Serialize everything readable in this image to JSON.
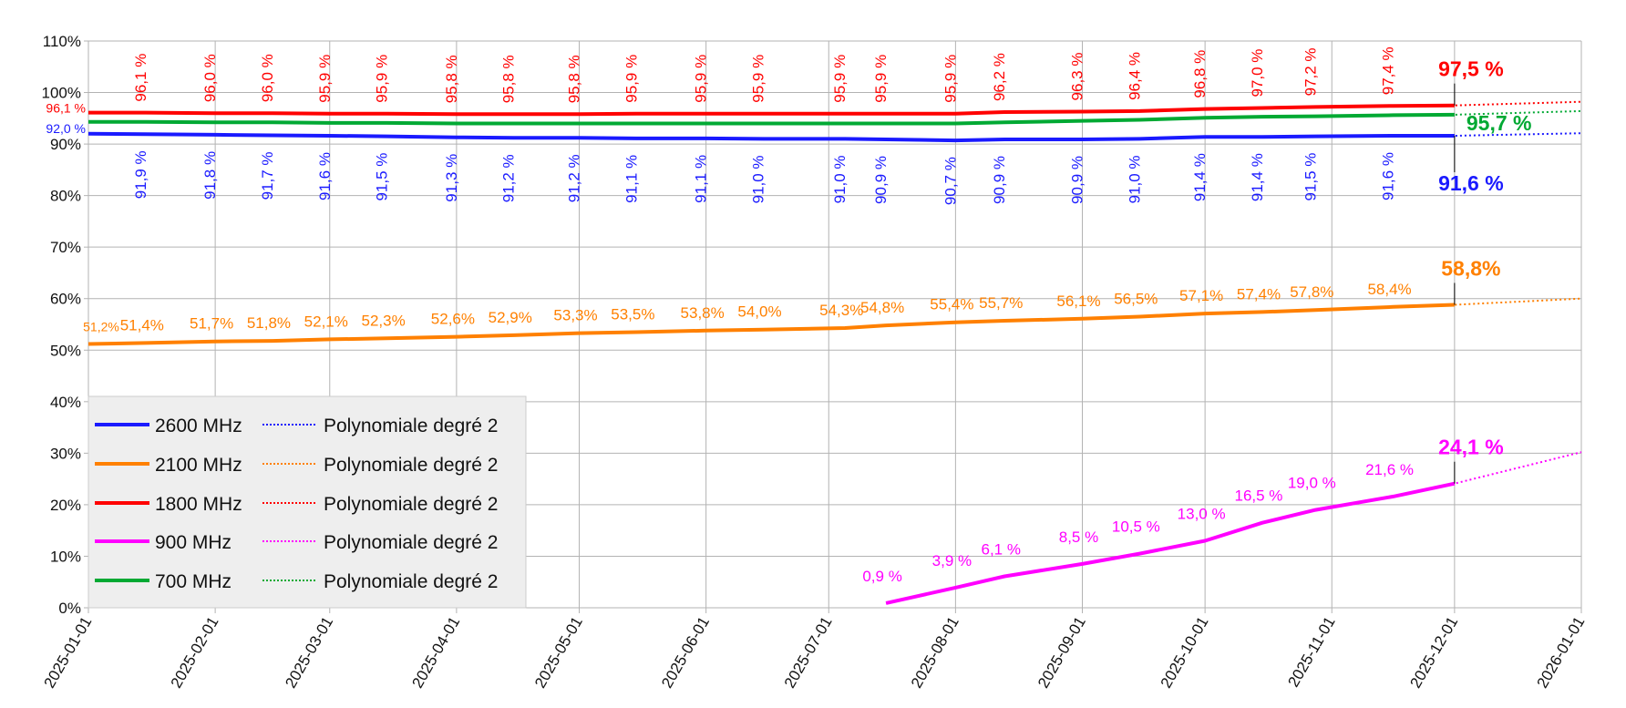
{
  "chart_data": {
    "type": "line",
    "title": "",
    "xlabel": "",
    "ylabel": "",
    "xlim": [
      "2025-01-01",
      "2026-01-01"
    ],
    "ylim": [
      0,
      110
    ],
    "grid": true,
    "legend_position": "bottom-left",
    "y_ticks": [
      "0%",
      "10%",
      "20%",
      "30%",
      "40%",
      "50%",
      "60%",
      "70%",
      "80%",
      "90%",
      "100%",
      "110%"
    ],
    "x_ticks": [
      "2025-01-01",
      "2025-02-01",
      "2025-03-01",
      "2025-04-01",
      "2025-05-01",
      "2025-06-01",
      "2025-07-01",
      "2025-08-01",
      "2025-09-01",
      "2025-10-01",
      "2025-11-01",
      "2025-12-01",
      "2026-01-01"
    ],
    "x": [
      "2025-01-01",
      "2025-01-15",
      "2025-02-01",
      "2025-02-15",
      "2025-03-01",
      "2025-03-15",
      "2025-04-01",
      "2025-04-15",
      "2025-05-01",
      "2025-05-15",
      "2025-06-01",
      "2025-06-15",
      "2025-07-05",
      "2025-07-15",
      "2025-08-01",
      "2025-08-13",
      "2025-09-01",
      "2025-09-15",
      "2025-10-01",
      "2025-10-15",
      "2025-10-28",
      "2025-11-16",
      "2025-12-01"
    ],
    "series": [
      {
        "name": "2600 MHz",
        "color": "#1a1aff",
        "label_style": "below-rotated",
        "values": [
          92.0,
          91.9,
          91.8,
          91.7,
          91.6,
          91.5,
          91.3,
          91.2,
          91.2,
          91.1,
          91.1,
          91.0,
          91.0,
          90.9,
          90.7,
          90.9,
          90.9,
          91.0,
          91.4,
          91.4,
          91.5,
          91.6,
          91.6
        ],
        "labels": [
          "92,0 %",
          "91,9 %",
          "91,8 %",
          "91,7 %",
          "91,6 %",
          "91,5 %",
          "91,3 %",
          "91,2 %",
          "91,2 %",
          "91,1 %",
          "91,1 %",
          "91,0 %",
          "91,0 %",
          "90,9 %",
          "90,7 %",
          "90,9 %",
          "90,9 %",
          "91,0 %",
          "91,4 %",
          "91,4 %",
          "91,5 %",
          "91,6 %",
          "91,6 %"
        ],
        "trend_end": 92.1
      },
      {
        "name": "2100 MHz",
        "color": "#ff8000",
        "label_style": "above",
        "values": [
          51.2,
          51.4,
          51.7,
          51.8,
          52.1,
          52.3,
          52.6,
          52.9,
          53.3,
          53.5,
          53.8,
          54.0,
          54.3,
          54.8,
          55.4,
          55.7,
          56.1,
          56.5,
          57.1,
          57.4,
          57.8,
          58.4,
          58.8
        ],
        "labels": [
          "51,2%",
          "51,4%",
          "51,7%",
          "51,8%",
          "52,1%",
          "52,3%",
          "52,6%",
          "52,9%",
          "53,3%",
          "53,5%",
          "53,8%",
          "54,0%",
          "54,3%",
          "54,8%",
          "55,4%",
          "55,7%",
          "56,1%",
          "56,5%",
          "57,1%",
          "57,4%",
          "57,8%",
          "58,4%",
          "58,8%"
        ],
        "trend_end": 60.0
      },
      {
        "name": "1800 MHz",
        "color": "#ff0000",
        "label_style": "above-rotated",
        "values": [
          96.1,
          96.1,
          96.0,
          96.0,
          95.9,
          95.9,
          95.8,
          95.8,
          95.8,
          95.9,
          95.9,
          95.9,
          95.9,
          95.9,
          95.9,
          96.2,
          96.3,
          96.4,
          96.8,
          97.0,
          97.2,
          97.4,
          97.5
        ],
        "labels": [
          "96,1 %",
          "96,1 %",
          "96,0 %",
          "96,0 %",
          "95,9 %",
          "95,9 %",
          "95,8 %",
          "95,8 %",
          "95,8 %",
          "95,9 %",
          "95,9 %",
          "95,9 %",
          "95,9 %",
          "95,9 %",
          "95,9 %",
          "96,2 %",
          "96,3 %",
          "96,4 %",
          "96,8 %",
          "97,0 %",
          "97,2 %",
          "97,4 %",
          "97,5 %"
        ],
        "trend_end": 98.2
      },
      {
        "name": "900 MHz",
        "color": "#ff00ff",
        "label_style": "above",
        "values": [
          null,
          null,
          null,
          null,
          null,
          null,
          null,
          null,
          null,
          null,
          null,
          null,
          null,
          0.9,
          3.9,
          6.1,
          8.5,
          10.5,
          13.0,
          16.5,
          19.0,
          21.6,
          24.1
        ],
        "labels": [
          null,
          null,
          null,
          null,
          null,
          null,
          null,
          null,
          null,
          null,
          null,
          null,
          null,
          "0,9 %",
          "3,9 %",
          "6,1 %",
          "8,5 %",
          "10,5 %",
          "13,0 %",
          "16,5 %",
          "19,0 %",
          "21,6 %",
          "24,1 %"
        ],
        "trend_end": 30.2
      },
      {
        "name": "700 MHz",
        "color": "#00a933",
        "label_style": "none",
        "values": [
          94.3,
          94.3,
          94.2,
          94.2,
          94.1,
          94.1,
          94.0,
          94.0,
          94.0,
          94.0,
          94.0,
          94.0,
          94.0,
          94.0,
          94.0,
          94.2,
          94.5,
          94.7,
          95.1,
          95.3,
          95.4,
          95.6,
          95.7
        ],
        "labels": [
          null,
          null,
          null,
          null,
          null,
          null,
          null,
          null,
          null,
          null,
          null,
          null,
          null,
          null,
          null,
          null,
          null,
          null,
          null,
          null,
          null,
          null,
          "95,7 %"
        ],
        "trend_end": 96.4
      }
    ],
    "trend_label": "Polynomiale degré 2"
  }
}
